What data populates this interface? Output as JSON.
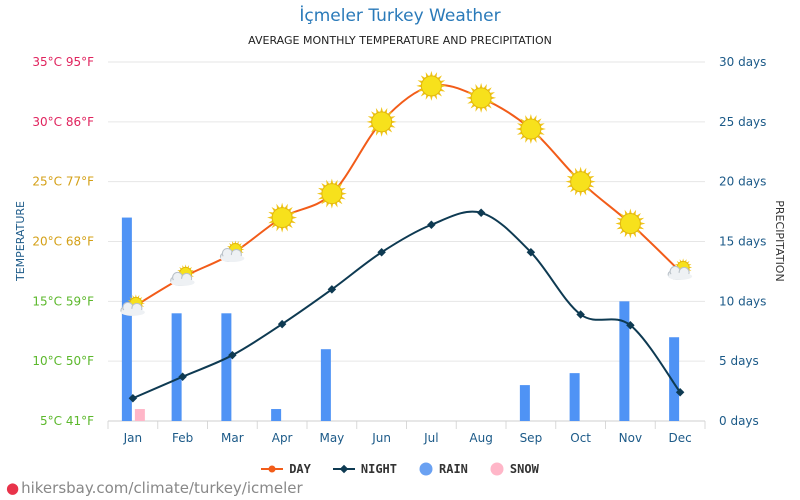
{
  "header": {
    "title": "İçmeler Turkey Weather",
    "subtitle": "AVERAGE MONTHLY TEMPERATURE AND PRECIPITATION"
  },
  "footer": {
    "source": "hikersbay.com/climate/turkey/icmeler"
  },
  "legend": {
    "day": "DAY",
    "night": "NIGHT",
    "rain": "RAIN",
    "snow": "SNOW"
  },
  "colors": {
    "day": "#f25c19",
    "night": "#0e3a52",
    "rain": "#4f93f5",
    "snow": "#ffb6c8",
    "left_axis_hot": "#e0245e",
    "left_axis_warm": "#d4a017",
    "left_axis_mild": "#5cb82c",
    "right_axis": "#1c5a88",
    "grid": "#e6e6e6"
  },
  "chart_data": {
    "type": "line",
    "title": "",
    "categories": [
      "Jan",
      "Feb",
      "Mar",
      "Apr",
      "May",
      "Jun",
      "Jul",
      "Aug",
      "Sep",
      "Oct",
      "Nov",
      "Dec"
    ],
    "left_axis": {
      "label": "TEMPERATURE",
      "ylim": [
        5,
        35
      ],
      "ticks": [
        "5°C 41°F",
        "10°C 50°F",
        "15°C 59°F",
        "20°C 68°F",
        "25°C 77°F",
        "30°C 86°F",
        "35°C 95°F"
      ]
    },
    "right_axis": {
      "label": "PRECIPITATION",
      "ylim": [
        0,
        30
      ],
      "ticks": [
        "0 days",
        "5 days",
        "10 days",
        "15 days",
        "20 days",
        "25 days",
        "30 days"
      ]
    },
    "grid": true,
    "series": [
      {
        "name": "DAY",
        "axis": "left",
        "kind": "line",
        "values": [
          14.5,
          17,
          19,
          22,
          24,
          30,
          33,
          32,
          29.4,
          25,
          21.5,
          17.5
        ],
        "icons": [
          "sun-cloud-icon",
          "sun-cloud-icon",
          "sun-cloud-icon",
          "sun-icon",
          "sun-icon",
          "sun-icon",
          "sun-icon",
          "sun-icon",
          "sun-icon",
          "sun-icon",
          "sun-icon",
          "sun-cloud-icon"
        ]
      },
      {
        "name": "NIGHT",
        "axis": "left",
        "kind": "line",
        "values": [
          6.9,
          8.7,
          10.5,
          13.1,
          16,
          19.1,
          21.4,
          22.4,
          19.1,
          13.9,
          13,
          7.4
        ]
      },
      {
        "name": "RAIN",
        "axis": "right",
        "kind": "bar",
        "values": [
          17,
          9,
          9,
          1,
          6,
          0,
          0,
          0,
          3,
          4,
          10,
          7
        ]
      },
      {
        "name": "SNOW",
        "axis": "right",
        "kind": "bar",
        "values": [
          1,
          0,
          0,
          0,
          0,
          0,
          0,
          0,
          0,
          0,
          0,
          0
        ]
      }
    ],
    "legend_position": "bottom-center"
  }
}
